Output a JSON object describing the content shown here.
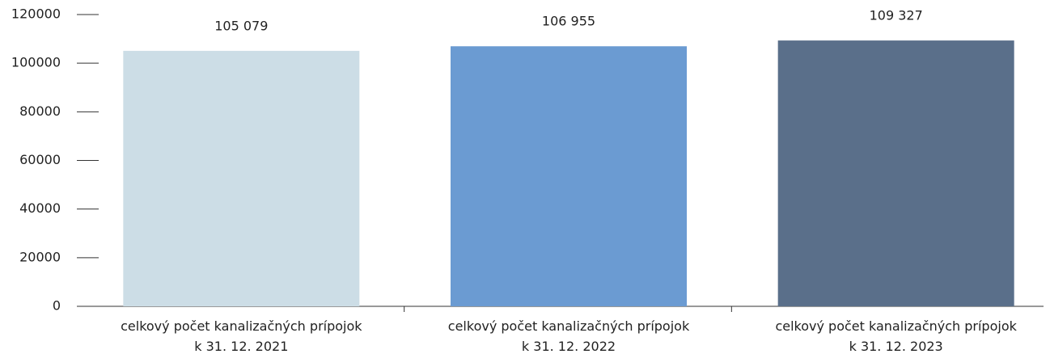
{
  "chart_data": {
    "type": "bar",
    "categories": [
      "celkový počet kanalizačných prípojok\nk 31. 12. 2021",
      "celkový počet kanalizačných prípojok\nk 31. 12. 2022",
      "celkový počet kanalizačných prípojok\nk 31. 12. 2023"
    ],
    "values": [
      105079,
      106955,
      109327
    ],
    "value_labels": [
      "105 079",
      "106 955",
      "109 327"
    ],
    "colors": [
      "#ccdde6",
      "#6b9bd2",
      "#5a6f8a"
    ],
    "ylim": [
      0,
      120000
    ],
    "yticks": [
      0,
      20000,
      40000,
      60000,
      80000,
      100000,
      120000
    ],
    "grid": false
  }
}
